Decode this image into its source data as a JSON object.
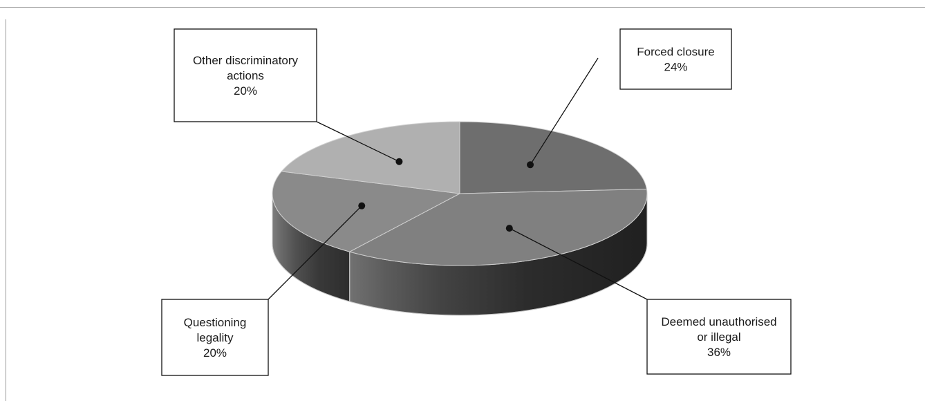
{
  "chart_data": {
    "type": "pie",
    "style": "3d",
    "slices": [
      {
        "label_lines": [
          "Forced closure"
        ],
        "value_text": "24%",
        "value": 24,
        "color": "#6e6e6e",
        "side_color": "#3a3a3a"
      },
      {
        "label_lines": [
          "Deemed unauthorised",
          "or illegal"
        ],
        "value_text": "36%",
        "value": 36,
        "color": "#808080",
        "side_color": "#262626"
      },
      {
        "label_lines": [
          "Questioning",
          "legality"
        ],
        "value_text": "20%",
        "value": 20,
        "color": "#8a8a8a",
        "side_color": "#4a4a4a"
      },
      {
        "label_lines": [
          "Other discriminatory",
          "actions"
        ],
        "value_text": "20%",
        "value": 20,
        "color": "#b0b0b0",
        "side_color": "#8e8e8e"
      }
    ]
  }
}
